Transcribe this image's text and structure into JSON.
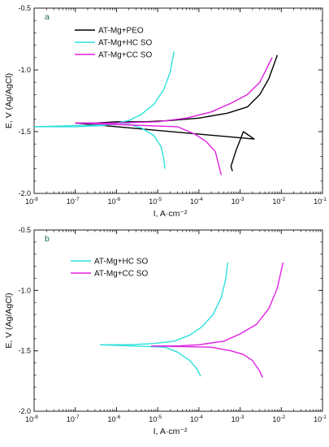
{
  "chart_data": [
    {
      "panel_label": "a",
      "type": "line",
      "xlabel": "I, A·cm⁻²",
      "ylabel": "E, V (Ag/AgCl)",
      "xscale": "log",
      "xlim": [
        1e-08,
        0.1
      ],
      "ylim": [
        -2.0,
        -0.5
      ],
      "x_tick_labels": [
        "10-8",
        "10-7",
        "10-6",
        "10-5",
        "10-4",
        "10-3",
        "10-2",
        "10-1"
      ],
      "y_tick_labels": [
        "-0.5",
        "-1.0",
        "-1.5",
        "-2.0"
      ],
      "y_tick_values": [
        -0.5,
        -1.0,
        -1.5,
        -2.0
      ],
      "legend_position": "top-left",
      "series": [
        {
          "name": "AT-Mg+PEO",
          "color": "#000000",
          "points": [
            [
              1e-07,
              -1.43
            ],
            [
              3e-07,
              -1.43
            ],
            [
              1e-06,
              -1.42
            ],
            [
              5e-06,
              -1.42
            ],
            [
              2e-05,
              -1.41
            ],
            [
              0.0001,
              -1.39
            ],
            [
              0.0005,
              -1.35
            ],
            [
              0.0015,
              -1.3
            ],
            [
              0.003,
              -1.2
            ],
            [
              0.005,
              -1.07
            ],
            [
              0.008,
              -0.88
            ],
            [
              0.0022,
              -1.56
            ],
            [
              0.0012,
              -1.5
            ],
            [
              0.0008,
              -1.65
            ],
            [
              0.0006,
              -1.78
            ],
            [
              0.00065,
              -1.82
            ]
          ]
        },
        {
          "name": "AT-Mg+HC SO",
          "color": "#2de0dd",
          "points": [
            [
              1e-08,
              -1.46
            ],
            [
              1e-07,
              -1.46
            ],
            [
              5e-07,
              -1.45
            ],
            [
              1e-06,
              -1.43
            ],
            [
              2e-06,
              -1.41
            ],
            [
              4e-06,
              -1.36
            ],
            [
              8e-06,
              -1.28
            ],
            [
              1.4e-05,
              -1.16
            ],
            [
              2e-05,
              -1.02
            ],
            [
              2.5e-05,
              -0.85
            ],
            [
              2e-06,
              -1.44
            ],
            [
              4e-06,
              -1.47
            ],
            [
              8e-06,
              -1.53
            ],
            [
              1.2e-05,
              -1.62
            ],
            [
              1.4e-05,
              -1.72
            ],
            [
              1.5e-05,
              -1.8
            ]
          ]
        },
        {
          "name": "AT-Mg+CC SO",
          "color": "#e020e0",
          "points": [
            [
              1e-07,
              -1.43
            ],
            [
              1e-06,
              -1.43
            ],
            [
              1e-05,
              -1.42
            ],
            [
              5e-05,
              -1.39
            ],
            [
              0.0002,
              -1.34
            ],
            [
              0.0006,
              -1.27
            ],
            [
              0.0015,
              -1.2
            ],
            [
              0.003,
              -1.1
            ],
            [
              0.006,
              -0.9
            ],
            [
              3e-05,
              -1.46
            ],
            [
              8e-05,
              -1.52
            ],
            [
              0.00015,
              -1.58
            ],
            [
              0.00025,
              -1.66
            ],
            [
              0.00035,
              -1.85
            ]
          ]
        }
      ]
    },
    {
      "panel_label": "b",
      "type": "line",
      "xlabel": "I, A·cm⁻²",
      "ylabel": "E, V (Ag/AgCl)",
      "xscale": "log",
      "xlim": [
        1e-08,
        0.1
      ],
      "ylim": [
        -2.0,
        -0.5
      ],
      "x_tick_labels": [
        "10-8",
        "10-7",
        "10-6",
        "10-5",
        "10-4",
        "10-3",
        "10-2",
        "10-1"
      ],
      "y_tick_labels": [
        "-0.5",
        "-1.0",
        "-1.5",
        "-2.0"
      ],
      "y_tick_values": [
        -0.5,
        -1.0,
        -1.5,
        -2.0
      ],
      "legend_position": "top-left",
      "series": [
        {
          "name": "AT-Mg+HC SO",
          "color": "#2de0dd",
          "points": [
            [
              4e-07,
              -1.45
            ],
            [
              2e-06,
              -1.45
            ],
            [
              8e-06,
              -1.44
            ],
            [
              2.5e-05,
              -1.42
            ],
            [
              6e-05,
              -1.37
            ],
            [
              0.00012,
              -1.3
            ],
            [
              0.00022,
              -1.2
            ],
            [
              0.00035,
              -1.06
            ],
            [
              0.00045,
              -0.9
            ],
            [
              0.0005,
              -0.77
            ],
            [
              1.5e-05,
              -1.47
            ],
            [
              3e-05,
              -1.51
            ],
            [
              6e-05,
              -1.58
            ],
            [
              9e-05,
              -1.65
            ],
            [
              0.00011,
              -1.71
            ]
          ]
        },
        {
          "name": "AT-Mg+CC SO",
          "color": "#e020e0",
          "points": [
            [
              7e-06,
              -1.46
            ],
            [
              3e-05,
              -1.46
            ],
            [
              0.0001,
              -1.45
            ],
            [
              0.0004,
              -1.42
            ],
            [
              0.001,
              -1.36
            ],
            [
              0.0025,
              -1.28
            ],
            [
              0.005,
              -1.15
            ],
            [
              0.008,
              -0.98
            ],
            [
              0.011,
              -0.77
            ],
            [
              0.0002,
              -1.47
            ],
            [
              0.0006,
              -1.5
            ],
            [
              0.0012,
              -1.53
            ],
            [
              0.002,
              -1.58
            ],
            [
              0.003,
              -1.67
            ],
            [
              0.0035,
              -1.72
            ]
          ]
        }
      ]
    }
  ]
}
